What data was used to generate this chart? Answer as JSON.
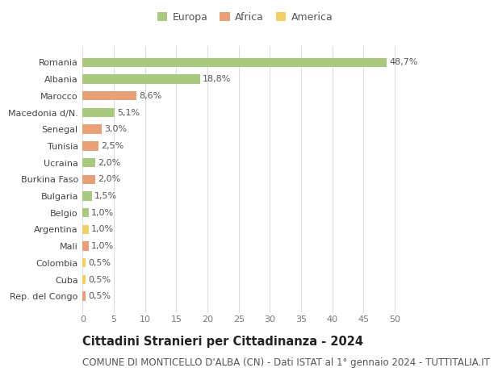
{
  "categories": [
    "Rep. del Congo",
    "Cuba",
    "Colombia",
    "Mali",
    "Argentina",
    "Belgio",
    "Bulgaria",
    "Burkina Faso",
    "Ucraina",
    "Tunisia",
    "Senegal",
    "Macedonia d/N.",
    "Marocco",
    "Albania",
    "Romania"
  ],
  "values": [
    0.5,
    0.5,
    0.5,
    1.0,
    1.0,
    1.0,
    1.5,
    2.0,
    2.0,
    2.5,
    3.0,
    5.1,
    8.6,
    18.8,
    48.7
  ],
  "labels": [
    "0,5%",
    "0,5%",
    "0,5%",
    "1,0%",
    "1,0%",
    "1,0%",
    "1,5%",
    "2,0%",
    "2,0%",
    "2,5%",
    "3,0%",
    "5,1%",
    "8,6%",
    "18,8%",
    "48,7%"
  ],
  "continents": [
    "Africa",
    "America",
    "America",
    "Africa",
    "America",
    "Europa",
    "Europa",
    "Africa",
    "Europa",
    "Africa",
    "Africa",
    "Europa",
    "Africa",
    "Europa",
    "Europa"
  ],
  "colors": {
    "Europa": "#a8c97f",
    "Africa": "#e8a07a",
    "America": "#f0ce68"
  },
  "legend_labels": [
    "Europa",
    "Africa",
    "America"
  ],
  "legend_colors": [
    "#a8c97f",
    "#e8a07a",
    "#f0ce68"
  ],
  "title": "Cittadini Stranieri per Cittadinanza - 2024",
  "subtitle": "COMUNE DI MONTICELLO D'ALBA (CN) - Dati ISTAT al 1° gennaio 2024 - TUTTITALIA.IT",
  "xlim": [
    0,
    52
  ],
  "xticks": [
    0,
    5,
    10,
    15,
    20,
    25,
    30,
    35,
    40,
    45,
    50
  ],
  "background_color": "#ffffff",
  "grid_color": "#dddddd",
  "bar_height": 0.55,
  "title_fontsize": 10.5,
  "subtitle_fontsize": 8.5,
  "label_fontsize": 8,
  "tick_fontsize": 8,
  "ytick_fontsize": 8,
  "legend_fontsize": 9
}
